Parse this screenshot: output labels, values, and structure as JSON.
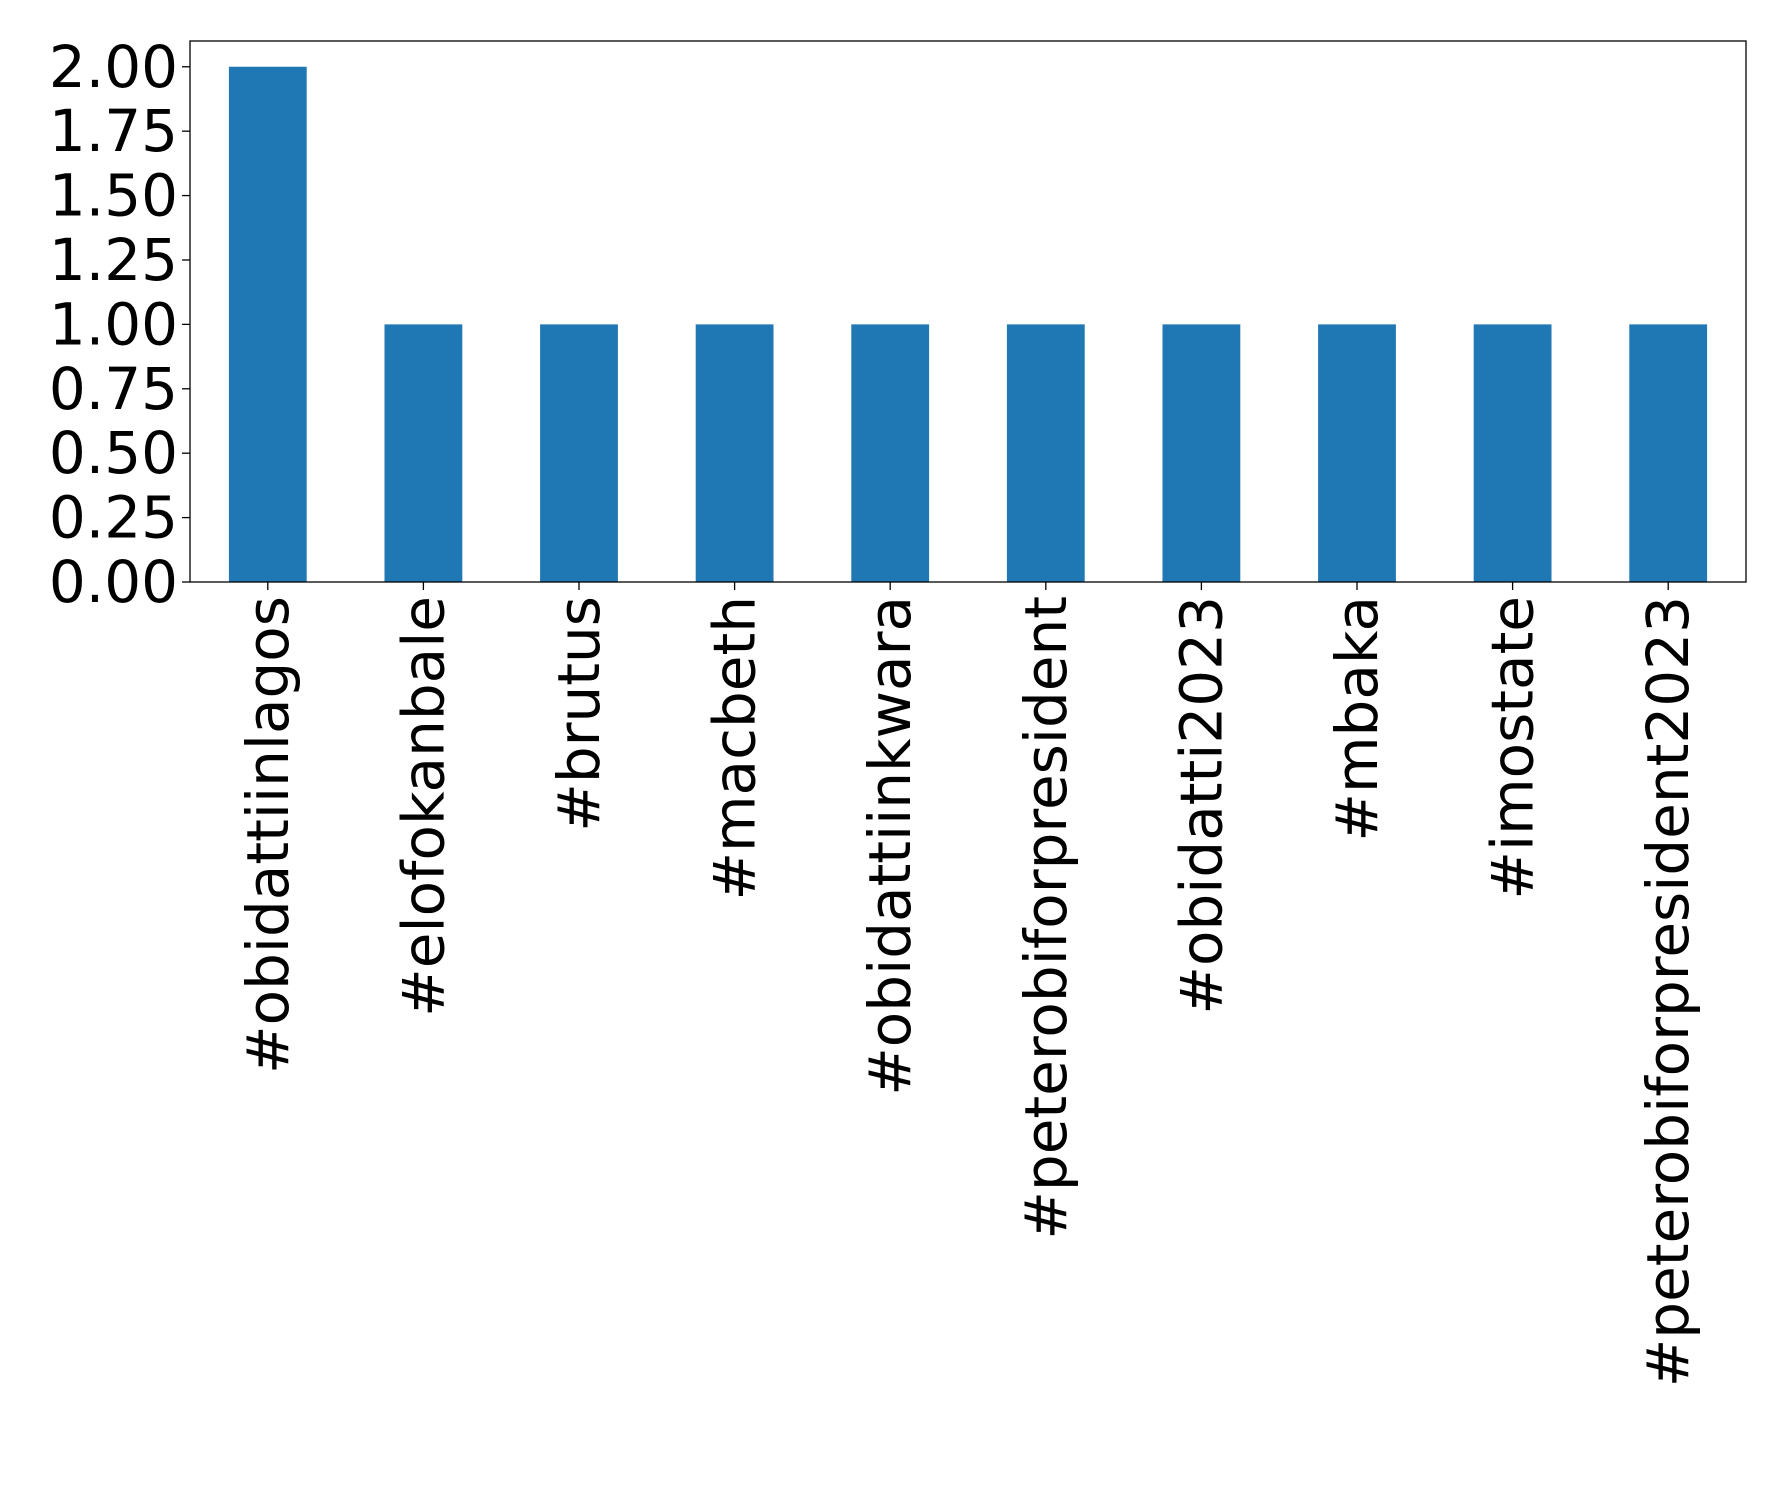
{
  "chart_data": {
    "type": "bar",
    "title": "",
    "xlabel": "",
    "ylabel": "",
    "categories": [
      "#obidattiinlagos",
      "#elofokanbale",
      "#brutus",
      "#macbeth",
      "#obidattiinkwara",
      "#peterobiforpresident",
      "#obidatti2023",
      "#mbaka",
      "#imostate",
      "#peterobiforpresident2023"
    ],
    "values": [
      2,
      1,
      1,
      1,
      1,
      1,
      1,
      1,
      1,
      1
    ],
    "ylim": [
      0,
      2.1
    ],
    "yticks": [
      0,
      0.25,
      0.5,
      0.75,
      1.0,
      1.25,
      1.5,
      1.75,
      2.0
    ],
    "ytick_labels": [
      "0.00",
      "0.25",
      "0.50",
      "0.75",
      "1.00",
      "1.25",
      "1.50",
      "1.75",
      "2.00"
    ],
    "grid": false,
    "legend": "none",
    "bar_color": "#1f77b4"
  }
}
